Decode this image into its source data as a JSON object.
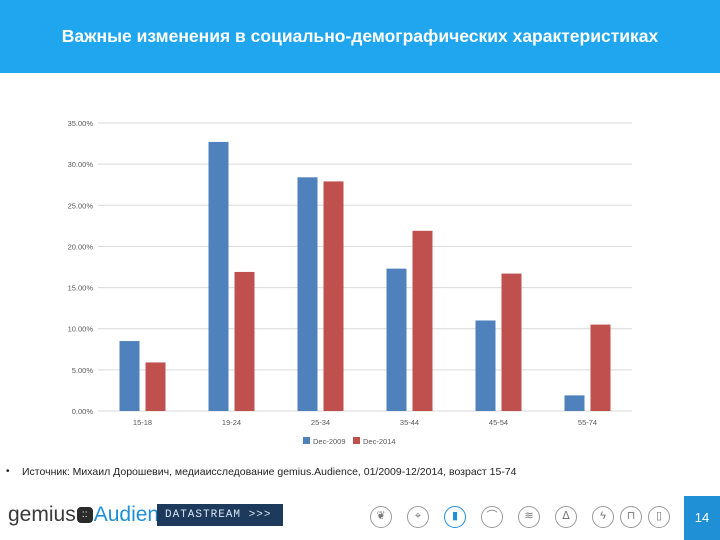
{
  "header": {
    "title": "Важные изменения в социально-демографических характеристиках"
  },
  "chart_data": {
    "type": "bar",
    "categories": [
      "15-18",
      "19-24",
      "25-34",
      "35-44",
      "45-54",
      "55-74"
    ],
    "series": [
      {
        "name": "Dec-2009",
        "color": "#4f81bd",
        "values": [
          8.5,
          32.7,
          28.4,
          17.3,
          11.0,
          1.9
        ]
      },
      {
        "name": "Dec-2014",
        "color": "#c0504d",
        "values": [
          5.9,
          16.9,
          27.9,
          21.9,
          16.7,
          10.5
        ]
      }
    ],
    "yticks": [
      "0.00%",
      "5.00%",
      "10.00%",
      "15.00%",
      "20.00%",
      "25.00%",
      "30.00%",
      "35.00%"
    ],
    "ylim": [
      0,
      35
    ],
    "grid": true,
    "legend": "bottom"
  },
  "source": {
    "bullet": "•",
    "text": "Источник: Михаил Дорошевич, медиаисследование gemius.Audience, 01/2009-12/2014, возраст 15-74"
  },
  "footer": {
    "logo_left": "gemius",
    "logo_dot": "::",
    "logo_right": "Audience",
    "datastream": "DATASTREAM >>>",
    "icons": [
      "leaf-icon",
      "location-pin-icon",
      "bar-chart-icon",
      "bird-icon",
      "wifi-icon",
      "flame-icon",
      "bolt-icon",
      "cart-icon",
      "device-icon"
    ],
    "page_number": "14"
  }
}
